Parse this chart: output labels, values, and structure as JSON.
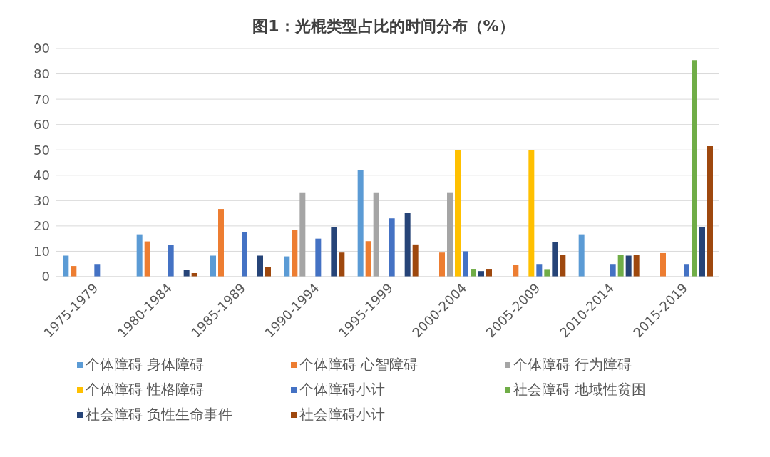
{
  "chart_data": {
    "type": "bar",
    "title": "图1：光棍类型占比的时间分布（%）",
    "categories": [
      "1975-1979",
      "1980-1984",
      "1985-1989",
      "1990-1994",
      "1995-1999",
      "2000-2004",
      "2005-2009",
      "2010-2014",
      "2015-2019"
    ],
    "series": [
      {
        "name": "个体障碍 身体障碍",
        "color": "#5b9bd5",
        "values": [
          8.3,
          16.7,
          8.3,
          8,
          42,
          null,
          null,
          16.7,
          null
        ]
      },
      {
        "name": "个体障碍 心智障碍",
        "color": "#ed7d31",
        "values": [
          4.2,
          13.9,
          26.7,
          18.5,
          14,
          9.5,
          4.5,
          null,
          9.3
        ]
      },
      {
        "name": "个体障碍 行为障碍",
        "color": "#a5a5a5",
        "values": [
          null,
          null,
          null,
          33,
          33,
          33,
          null,
          null,
          null
        ]
      },
      {
        "name": "个体障碍 性格障碍",
        "color": "#ffc000",
        "values": [
          null,
          null,
          null,
          null,
          null,
          50,
          50,
          null,
          null
        ]
      },
      {
        "name": "个体障碍小计",
        "color": "#4472c4",
        "values": [
          5,
          12.5,
          17.6,
          15,
          23,
          10,
          5,
          5,
          5
        ]
      },
      {
        "name": "社会障碍 地域性贫困",
        "color": "#70ad47",
        "values": [
          null,
          null,
          null,
          null,
          null,
          2.8,
          2.7,
          8.7,
          85.4
        ]
      },
      {
        "name": "社会障碍 负性生命事件",
        "color": "#264478",
        "values": [
          null,
          2.5,
          8.3,
          19.5,
          25,
          2.2,
          13.7,
          8.3,
          19.5
        ]
      },
      {
        "name": "社会障碍小计",
        "color": "#9e480e",
        "values": [
          null,
          1.4,
          3.9,
          9.5,
          12.7,
          2.8,
          8.7,
          8.7,
          51.5
        ]
      }
    ],
    "ylim": [
      0,
      90
    ],
    "yticks": [
      0,
      10,
      20,
      30,
      40,
      50,
      60,
      70,
      80,
      90
    ],
    "grid": "y",
    "legend": "bottom"
  }
}
